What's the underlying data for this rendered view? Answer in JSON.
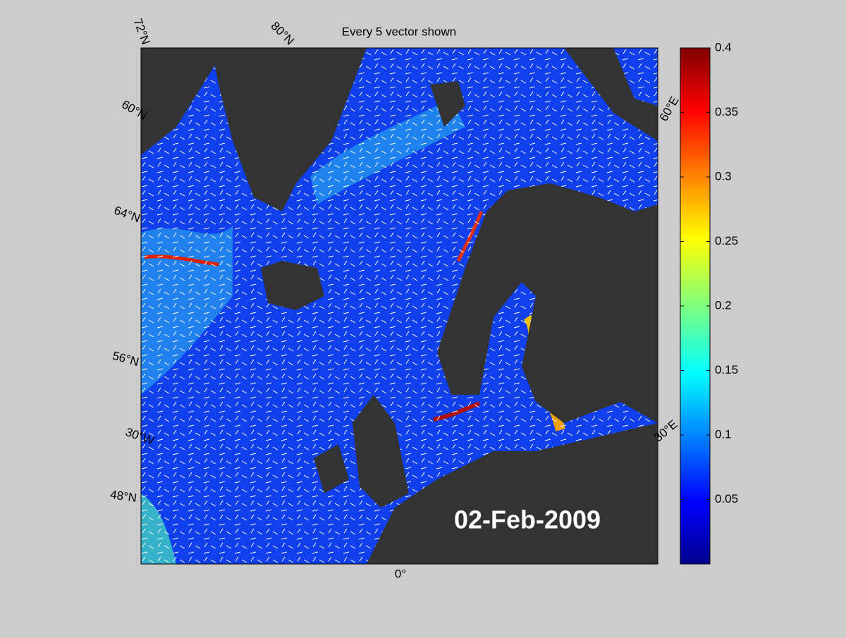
{
  "title": "Every 5 vector shown",
  "date": "02-Feb-2009",
  "graticule_labels": [
    "72°N",
    "80°N",
    "60°N",
    "64°N",
    "56°N",
    "30°W",
    "48°N",
    "0°",
    "30°E",
    "60°E"
  ],
  "colorbar": {
    "lim": [
      0,
      0.4
    ],
    "ticks": [
      0.05,
      0.1,
      0.15,
      0.2,
      0.25,
      0.3,
      0.35,
      0.4
    ]
  }
}
